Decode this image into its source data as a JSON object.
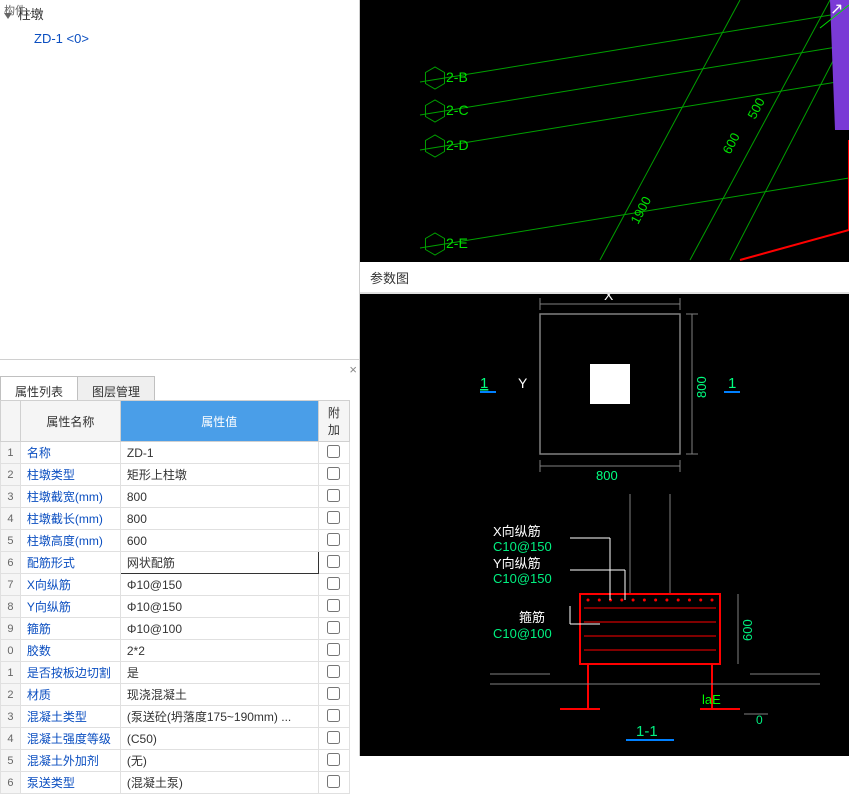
{
  "tree": {
    "root_label": "柱墩",
    "child_label": "ZD-1  <0>",
    "corner_hint": "构件..."
  },
  "tabs": {
    "tab1": "属性列表",
    "tab2": "图层管理"
  },
  "table": {
    "head_name": "属性名称",
    "head_value": "属性值",
    "head_extra": "附加",
    "rows": [
      {
        "n": "1",
        "name": "名称",
        "value": "ZD-1",
        "chk": false
      },
      {
        "n": "2",
        "name": "柱墩类型",
        "value": "矩形上柱墩",
        "chk": false
      },
      {
        "n": "3",
        "name": "柱墩截宽(mm)",
        "value": "800",
        "chk": false
      },
      {
        "n": "4",
        "name": "柱墩截长(mm)",
        "value": "800",
        "chk": false
      },
      {
        "n": "5",
        "name": "柱墩高度(mm)",
        "value": "600",
        "chk": false
      },
      {
        "n": "6",
        "name": "配筋形式",
        "value": "网状配筋",
        "chk": false,
        "edit": true
      },
      {
        "n": "7",
        "name": "X向纵筋",
        "value": "Φ10@150",
        "chk": false,
        "sym": "Φ"
      },
      {
        "n": "8",
        "name": "Y向纵筋",
        "value": "Φ10@150",
        "chk": false,
        "sym": "Φ"
      },
      {
        "n": "9",
        "name": "箍筋",
        "value": "Φ10@100",
        "chk": false,
        "sym": "Φ"
      },
      {
        "n": "0",
        "name": "胶数",
        "value": "2*2",
        "chk": false
      },
      {
        "n": "1",
        "name": "是否按板边切割",
        "value": "是",
        "chk": false
      },
      {
        "n": "2",
        "name": "材质",
        "value": "现浇混凝土",
        "chk": false
      },
      {
        "n": "3",
        "name": "混凝土类型",
        "value": "(泵送砼(坍落度175~190mm) ...",
        "chk": false
      },
      {
        "n": "4",
        "name": "混凝土强度等级",
        "value": "(C50)",
        "chk": false
      },
      {
        "n": "5",
        "name": "混凝土外加剂",
        "value": "(无)",
        "chk": false
      },
      {
        "n": "6",
        "name": "泵送类型",
        "value": "(混凝土泵)",
        "chk": false
      }
    ]
  },
  "param_title": "参数图",
  "top_view": {
    "grid_color": "#00a000",
    "grid_label_color": "#00e000",
    "labels": [
      "2-B",
      "2-C",
      "2-D",
      "2-E"
    ],
    "dims": [
      "1900",
      "600",
      "500"
    ],
    "dim_color": "#00e000",
    "red": "#ff0000",
    "fill": "#7a3ad6"
  },
  "plan_view": {
    "title_x": "X",
    "title_y": "Y",
    "dim_x": "800",
    "dim_y": "800",
    "section_mark": "1",
    "line_color": "#808080",
    "text_color": "#00ff80",
    "blue": "#0080ff",
    "white": "#ffffff"
  },
  "section_view": {
    "labels": {
      "x_rebar_title": "X向纵筋",
      "x_rebar_val": "C10@150",
      "y_rebar_title": "Y向纵筋",
      "y_rebar_val": "C10@150",
      "stirrup_title": "箍筋",
      "stirrup_val": "C10@100",
      "lae": "laE",
      "zero": "0",
      "h": "600",
      "section_label": "1-1"
    },
    "red": "#ff0000",
    "green": "#00ff00",
    "cyan": "#00f080",
    "white": "#ffffff",
    "gray": "#808080"
  }
}
